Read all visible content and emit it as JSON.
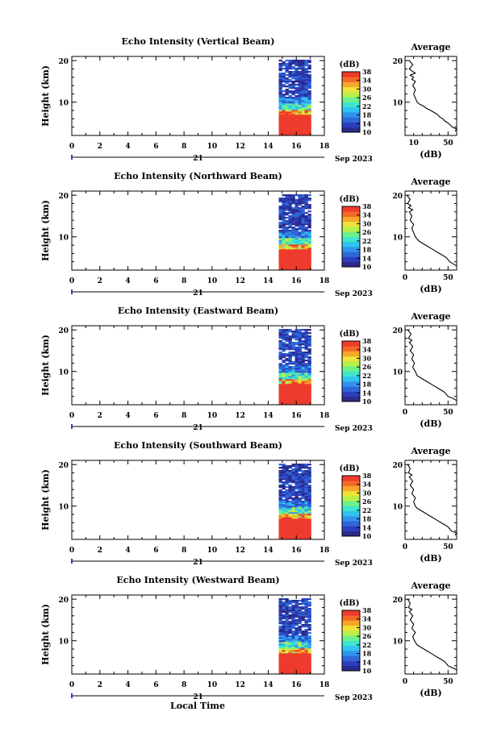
{
  "page": {
    "xlabel": "Local Time"
  },
  "colorbar": {
    "unit": "(dB)",
    "ticks": [
      10,
      14,
      18,
      22,
      26,
      30,
      34,
      38
    ],
    "range": [
      10,
      38
    ],
    "colors": [
      "#2b2a8a",
      "#2b3fbf",
      "#2e67d8",
      "#2f93ec",
      "#2fc3f0",
      "#3ee6d0",
      "#6cf08a",
      "#b7f04a",
      "#f0e23a",
      "#f8a629",
      "#f46a25",
      "#ee3b2c"
    ]
  },
  "chart_data": [
    {
      "type": "heatmap",
      "title": "Echo Intensity (Vertical Beam)",
      "ylabel": "Height (km)",
      "xlim": [
        0,
        18
      ],
      "ylim": [
        2,
        21
      ],
      "xticks": [
        0,
        2,
        4,
        6,
        8,
        10,
        12,
        14,
        16,
        18
      ],
      "yticks": [
        10,
        20
      ],
      "day_label": "21",
      "month_label": "Sep 2023",
      "data_x_range": [
        14.75,
        16.9
      ],
      "profile": {
        "title": "Average",
        "xlabel": "(dB)",
        "xlim": [
          0,
          60
        ],
        "ylim": [
          2,
          21
        ],
        "xticks": [
          10,
          50
        ],
        "yticks": [
          10,
          20
        ],
        "x": [
          58,
          60,
          55,
          50,
          46,
          44,
          40,
          38,
          34,
          30,
          25,
          22,
          17,
          14,
          12,
          10,
          12,
          9,
          12,
          8,
          10,
          6,
          12,
          8,
          5,
          9,
          5
        ],
        "y": [
          3.0,
          3.5,
          4.0,
          5.0,
          5.5,
          6.0,
          6.5,
          7.0,
          7.5,
          8.0,
          8.5,
          9.0,
          9.5,
          10.0,
          11.0,
          12.0,
          13.0,
          14.0,
          15.0,
          15.5,
          16.0,
          16.5,
          17.0,
          17.5,
          18.0,
          19.0,
          20.0
        ]
      }
    },
    {
      "type": "heatmap",
      "title": "Echo Intensity (Northward Beam)",
      "ylabel": "Height (km)",
      "xlim": [
        0,
        18
      ],
      "ylim": [
        2,
        21
      ],
      "xticks": [
        0,
        2,
        4,
        6,
        8,
        10,
        12,
        14,
        16,
        18
      ],
      "yticks": [
        10,
        20
      ],
      "day_label": "21",
      "month_label": "Sep 2023",
      "data_x_range": [
        14.75,
        16.9
      ],
      "profile": {
        "title": "Average",
        "xlabel": "(dB)",
        "xlim": [
          0,
          60
        ],
        "ylim": [
          2,
          21
        ],
        "xticks": [
          0,
          50
        ],
        "yticks": [
          10,
          20
        ],
        "x": [
          60,
          56,
          52,
          48,
          44,
          40,
          36,
          32,
          28,
          24,
          20,
          16,
          12,
          10,
          8,
          10,
          6,
          8,
          5,
          9,
          4,
          7,
          3,
          6,
          2
        ],
        "y": [
          3.0,
          3.5,
          4.0,
          5.0,
          5.5,
          6.0,
          6.5,
          7.0,
          7.5,
          8.0,
          8.5,
          9.0,
          10.0,
          11.0,
          12.0,
          13.0,
          14.0,
          15.0,
          16.0,
          16.5,
          17.0,
          17.5,
          18.0,
          19.0,
          20.0
        ]
      }
    },
    {
      "type": "heatmap",
      "title": "Echo Intensity (Eastward Beam)",
      "ylabel": "Height (km)",
      "xlim": [
        0,
        18
      ],
      "ylim": [
        2,
        21
      ],
      "xticks": [
        0,
        2,
        4,
        6,
        8,
        10,
        12,
        14,
        16,
        18
      ],
      "yticks": [
        10,
        20
      ],
      "day_label": "21",
      "month_label": "Sep 2023",
      "data_x_range": [
        14.75,
        16.9
      ],
      "profile": {
        "title": "Average",
        "xlabel": "(dB)",
        "xlim": [
          0,
          60
        ],
        "ylim": [
          2,
          21
        ],
        "xticks": [
          0,
          50
        ],
        "yticks": [
          10,
          20
        ],
        "x": [
          60,
          56,
          50,
          46,
          42,
          38,
          34,
          30,
          26,
          22,
          18,
          14,
          12,
          9,
          11,
          8,
          10,
          6,
          9,
          5,
          8,
          4,
          7,
          3
        ],
        "y": [
          3.0,
          3.5,
          4.0,
          5.0,
          5.5,
          6.0,
          6.5,
          7.0,
          7.5,
          8.0,
          8.5,
          9.0,
          10.0,
          11.0,
          12.0,
          13.0,
          14.0,
          15.0,
          16.0,
          17.0,
          17.5,
          18.0,
          19.0,
          20.0
        ]
      }
    },
    {
      "type": "heatmap",
      "title": "Echo Intensity (Southward Beam)",
      "ylabel": "Height (km)",
      "xlim": [
        0,
        18
      ],
      "ylim": [
        2,
        21
      ],
      "xticks": [
        0,
        2,
        4,
        6,
        8,
        10,
        12,
        14,
        16,
        18
      ],
      "yticks": [
        10,
        20
      ],
      "day_label": "21",
      "month_label": "Sep 2023",
      "data_x_range": [
        14.75,
        16.9
      ],
      "profile": {
        "title": "Average",
        "xlabel": "(dB)",
        "xlim": [
          0,
          60
        ],
        "ylim": [
          2,
          21
        ],
        "xticks": [
          0,
          50
        ],
        "yticks": [
          10,
          20
        ],
        "x": [
          58,
          60,
          54,
          50,
          46,
          42,
          38,
          34,
          30,
          26,
          22,
          18,
          14,
          12,
          10,
          12,
          8,
          10,
          6,
          9,
          5,
          8,
          4,
          6,
          3
        ],
        "y": [
          3.0,
          3.5,
          4.0,
          5.0,
          5.5,
          6.0,
          6.5,
          7.0,
          7.5,
          8.0,
          8.5,
          9.0,
          9.5,
          10.0,
          11.0,
          12.0,
          13.0,
          14.0,
          15.0,
          16.0,
          17.0,
          17.5,
          18.0,
          19.0,
          20.0
        ]
      }
    },
    {
      "type": "heatmap",
      "title": "Echo Intensity (Westward Beam)",
      "ylabel": "Height (km)",
      "xlim": [
        0,
        18
      ],
      "ylim": [
        2,
        21
      ],
      "xticks": [
        0,
        2,
        4,
        6,
        8,
        10,
        12,
        14,
        16,
        18
      ],
      "yticks": [
        10,
        20
      ],
      "day_label": "21",
      "month_label": "Sep 2023",
      "data_x_range": [
        14.75,
        16.9
      ],
      "profile": {
        "title": "Average",
        "xlabel": "(dB)",
        "xlim": [
          0,
          60
        ],
        "ylim": [
          2,
          21
        ],
        "xticks": [
          0,
          50
        ],
        "yticks": [
          10,
          20
        ],
        "x": [
          60,
          55,
          50,
          46,
          42,
          38,
          34,
          30,
          26,
          22,
          18,
          14,
          11,
          9,
          12,
          8,
          10,
          6,
          9,
          5,
          8,
          4,
          6,
          3
        ],
        "y": [
          3.0,
          3.5,
          4.0,
          5.0,
          5.5,
          6.0,
          6.5,
          7.0,
          7.5,
          8.0,
          8.5,
          9.0,
          10.0,
          11.0,
          12.0,
          13.0,
          14.0,
          15.0,
          16.0,
          17.0,
          17.5,
          18.0,
          19.0,
          20.0
        ]
      }
    }
  ]
}
